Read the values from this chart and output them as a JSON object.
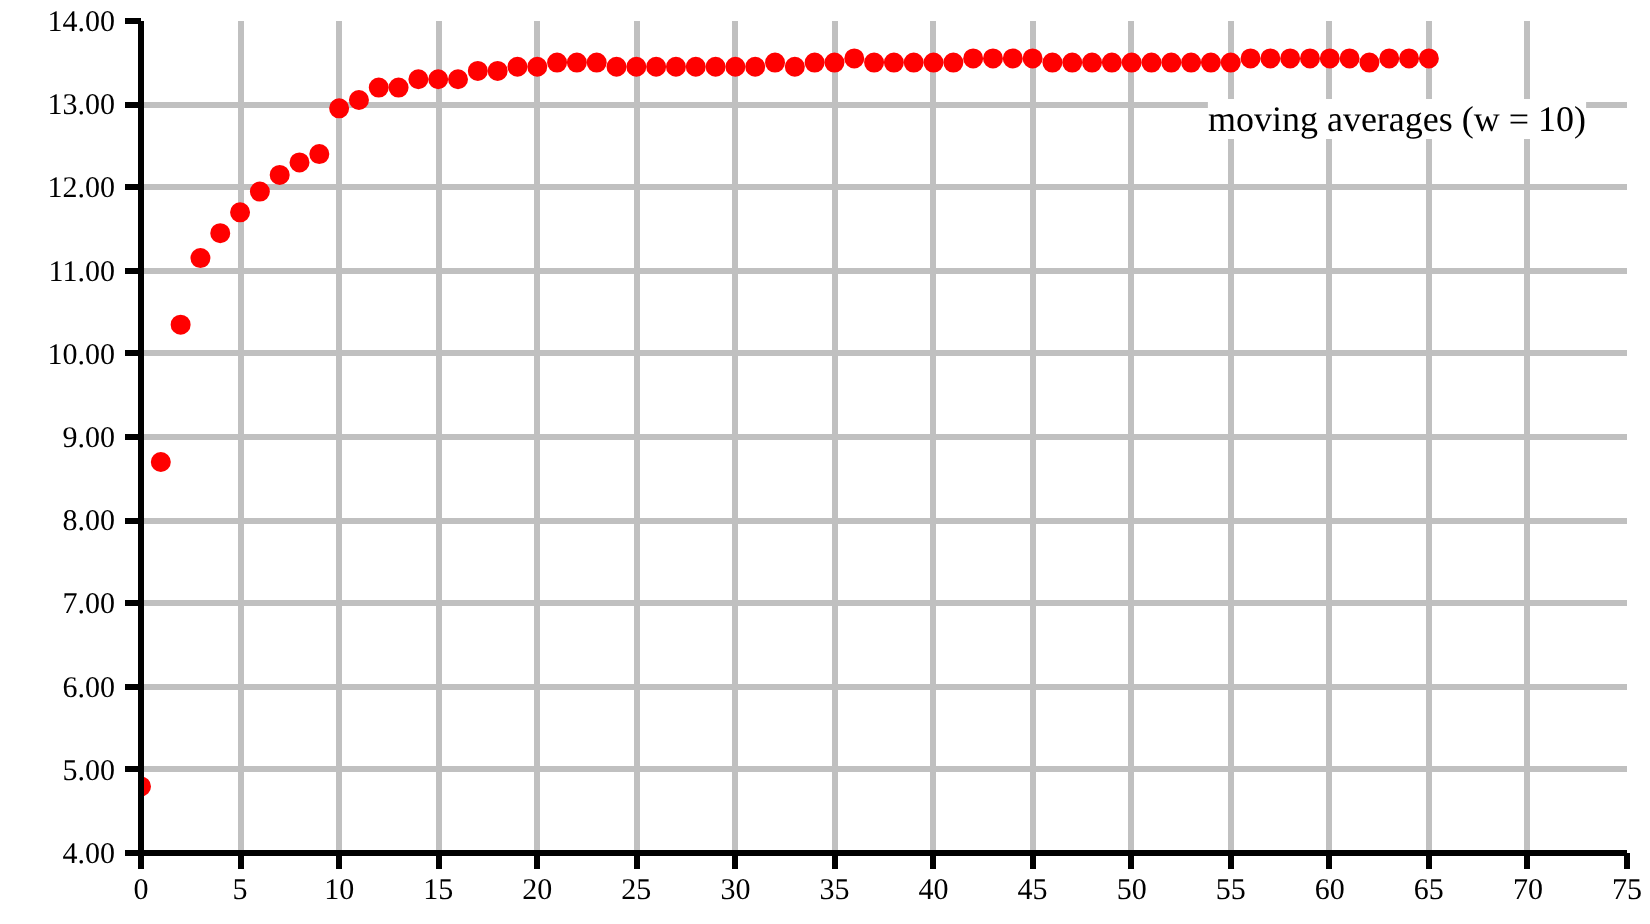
{
  "chart_data": {
    "type": "scatter",
    "marker": "circle",
    "grid": true,
    "x": [
      0,
      1,
      2,
      3,
      4,
      5,
      6,
      7,
      8,
      9,
      10,
      11,
      12,
      13,
      14,
      15,
      16,
      17,
      18,
      19,
      20,
      21,
      22,
      23,
      24,
      25,
      26,
      27,
      28,
      29,
      30,
      31,
      32,
      33,
      34,
      35,
      36,
      37,
      38,
      39,
      40,
      41,
      42,
      43,
      44,
      45,
      46,
      47,
      48,
      49,
      50,
      51,
      52,
      53,
      54,
      55,
      56,
      57,
      58,
      59,
      60,
      61,
      62,
      63,
      64,
      65
    ],
    "series": [
      {
        "color": "#ff0000",
        "values": [
          4.8,
          8.7,
          10.35,
          11.15,
          11.45,
          11.7,
          11.95,
          12.15,
          12.3,
          12.4,
          12.95,
          13.05,
          13.2,
          13.2,
          13.3,
          13.3,
          13.3,
          13.4,
          13.4,
          13.45,
          13.45,
          13.5,
          13.5,
          13.5,
          13.45,
          13.45,
          13.45,
          13.45,
          13.45,
          13.45,
          13.45,
          13.45,
          13.5,
          13.45,
          13.5,
          13.5,
          13.55,
          13.5,
          13.5,
          13.5,
          13.5,
          13.5,
          13.55,
          13.55,
          13.55,
          13.55,
          13.5,
          13.5,
          13.5,
          13.5,
          13.5,
          13.5,
          13.5,
          13.5,
          13.5,
          13.5,
          13.55,
          13.55,
          13.55,
          13.55,
          13.55,
          13.55,
          13.5,
          13.55,
          13.55,
          13.55
        ]
      }
    ],
    "xlim": [
      0,
      75
    ],
    "xticks": [
      0,
      5,
      10,
      15,
      20,
      25,
      30,
      35,
      40,
      45,
      50,
      55,
      60,
      65,
      70,
      75
    ],
    "ylim": [
      4,
      14
    ],
    "yticks": [
      {
        "value": 4,
        "label": "4.00"
      },
      {
        "value": 5,
        "label": "5.00"
      },
      {
        "value": 6,
        "label": "6.00"
      },
      {
        "value": 7,
        "label": "7.00"
      },
      {
        "value": 8,
        "label": "8.00"
      },
      {
        "value": 9,
        "label": "9.00"
      },
      {
        "value": 10,
        "label": "10.00"
      },
      {
        "value": 11,
        "label": "11.00"
      },
      {
        "value": 12,
        "label": "12.00"
      },
      {
        "value": 13,
        "label": "13.00"
      },
      {
        "value": 14,
        "label": "14.00"
      }
    ],
    "annotations": [
      "moving averages (w = 10)"
    ]
  }
}
